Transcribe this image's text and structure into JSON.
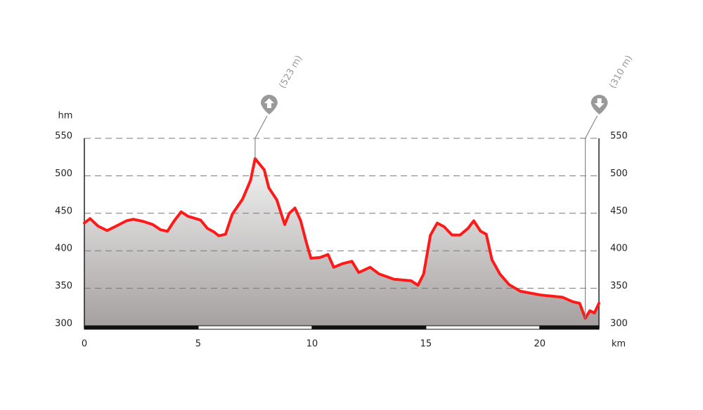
{
  "chart_data": {
    "type": "area",
    "x_label": "km",
    "y_label": "hm",
    "x": [
      0,
      0.25,
      0.6,
      1.0,
      1.4,
      1.85,
      2.15,
      2.6,
      3.0,
      3.35,
      3.65,
      3.95,
      4.25,
      4.55,
      5.1,
      5.4,
      5.7,
      5.9,
      6.2,
      6.5,
      6.95,
      7.3,
      7.5,
      7.6,
      7.9,
      8.1,
      8.45,
      8.8,
      9.0,
      9.25,
      9.5,
      9.75,
      9.95,
      10.35,
      10.7,
      10.95,
      11.35,
      11.75,
      12.05,
      12.55,
      12.95,
      13.6,
      14.35,
      14.65,
      14.9,
      15.2,
      15.5,
      15.8,
      16.15,
      16.5,
      16.85,
      17.1,
      17.4,
      17.65,
      17.9,
      18.25,
      18.65,
      19.15,
      20.05,
      21.0,
      21.45,
      21.75,
      22.0,
      22.2,
      22.4,
      22.6
    ],
    "values": [
      437,
      443,
      433,
      427,
      433,
      440,
      442,
      439,
      435,
      428,
      426,
      440,
      452,
      446,
      441,
      430,
      425,
      420,
      422,
      449,
      469,
      494,
      523,
      519,
      508,
      484,
      468,
      435,
      450,
      457,
      440,
      411,
      390,
      391,
      395,
      378,
      383,
      386,
      371,
      378,
      369,
      362,
      360,
      354,
      369,
      421,
      437,
      432,
      421,
      421,
      430,
      440,
      426,
      422,
      388,
      369,
      355,
      346,
      341,
      338,
      332,
      330,
      310,
      320,
      317,
      330
    ],
    "color": "#ff1a1a",
    "xlim": [
      0,
      22.6
    ],
    "ylim": [
      300,
      550
    ],
    "xticks": [
      0,
      5,
      10,
      15,
      20
    ],
    "yticks": [
      300,
      350,
      400,
      450,
      500,
      550
    ],
    "grid": true,
    "max_label": "(523 m)",
    "min_label": "(310 m)"
  }
}
